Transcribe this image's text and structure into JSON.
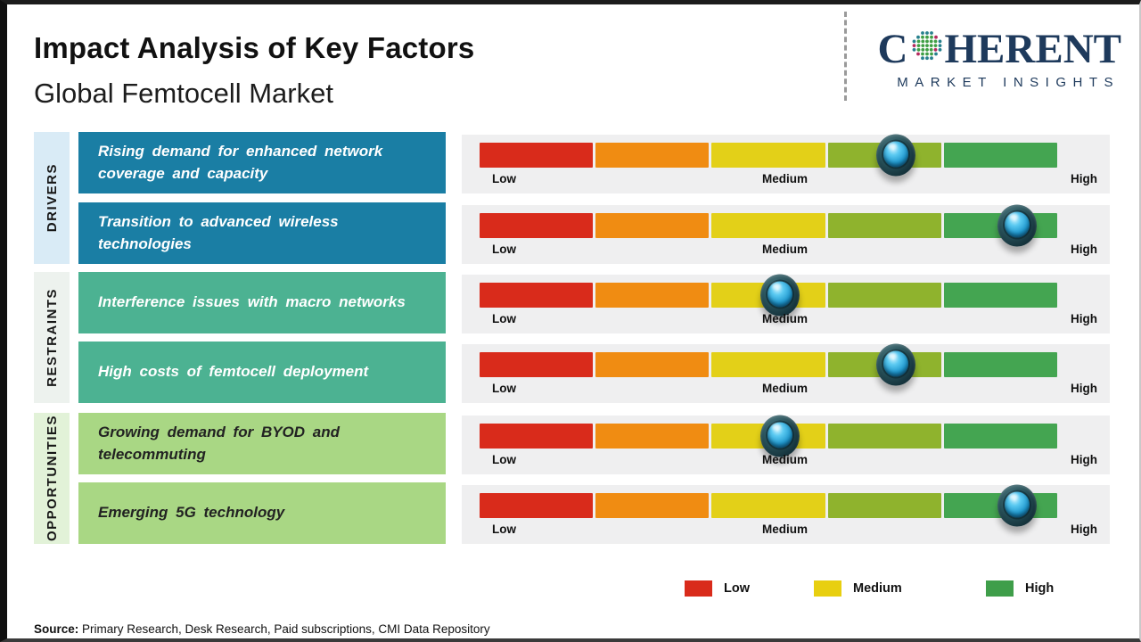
{
  "header": {
    "title": "Impact Analysis of Key Factors",
    "subtitle": "Global Femtocell Market"
  },
  "logo": {
    "brand_c": "C",
    "brand_rest": "HERENT",
    "brand_sub": "MARKET INSIGHTS",
    "navy": "#1e3a5c"
  },
  "categories": [
    {
      "label": "DRIVERS"
    },
    {
      "label": "RESTRAINTS"
    },
    {
      "label": "OPPORTUNITIES"
    }
  ],
  "scale_labels": {
    "low": "Low",
    "medium": "Medium",
    "high": "High"
  },
  "scale_colors": [
    "#d92b1b",
    "#f08c12",
    "#e3d018",
    "#8fb32d",
    "#44a551"
  ],
  "colors": {
    "driver_box": "#1a7ea4",
    "restraint_box": "#4cb292",
    "opportunity_box": "#a9d784",
    "strip_drivers": "#d9ebf6",
    "strip_restraints": "#edf2ee",
    "strip_opportunities": "#e2f2d8",
    "panel_bg": "#efeff0",
    "legend_low": "#d92b1b",
    "legend_medium": "#e8cf10",
    "legend_high": "#3f9e4a"
  },
  "chart_data": {
    "type": "bar",
    "title": "Impact Analysis of Key Factors",
    "subtitle": "Global Femtocell Market",
    "scale": {
      "labels": [
        "Low",
        "Medium",
        "High"
      ],
      "range_percent": [
        0,
        100
      ],
      "segments": 5
    },
    "legend": [
      "Low",
      "Medium",
      "High"
    ],
    "series": [
      {
        "group": "DRIVERS",
        "factor": "Rising demand for enhanced network coverage and capacity",
        "factor_wrapped": "Rising demand for enhanced network\ncoverage and capacity",
        "impact_percent": 72,
        "impact_level": "Medium-High"
      },
      {
        "group": "DRIVERS",
        "factor": "Transition to advanced wireless technologies",
        "factor_wrapped": "Transition to advanced wireless\ntechnologies",
        "impact_percent": 93,
        "impact_level": "High"
      },
      {
        "group": "RESTRAINTS",
        "factor": "Interference issues with macro networks",
        "factor_wrapped": "Interference issues with macro networks",
        "impact_percent": 52,
        "impact_level": "Medium"
      },
      {
        "group": "RESTRAINTS",
        "factor": "High costs of femtocell deployment",
        "factor_wrapped": "High costs of femtocell deployment",
        "impact_percent": 72,
        "impact_level": "Medium-High"
      },
      {
        "group": "OPPORTUNITIES",
        "factor": "Growing demand for BYOD and telecommuting",
        "factor_wrapped": "Growing demand for BYOD and\ntelecommuting",
        "impact_percent": 52,
        "impact_level": "Medium"
      },
      {
        "group": "OPPORTUNITIES",
        "factor": "Emerging 5G technology",
        "factor_wrapped": "Emerging 5G technology",
        "impact_percent": 93,
        "impact_level": "High"
      }
    ]
  },
  "legend": [
    {
      "label": "Low",
      "color": "#d92b1b"
    },
    {
      "label": "Medium",
      "color": "#e8cf10"
    },
    {
      "label": "High",
      "color": "#3f9e4a"
    }
  ],
  "source": {
    "prefix": "Source:",
    "text": " Primary Research, Desk Research, Paid subscriptions, CMI Data Repository"
  }
}
